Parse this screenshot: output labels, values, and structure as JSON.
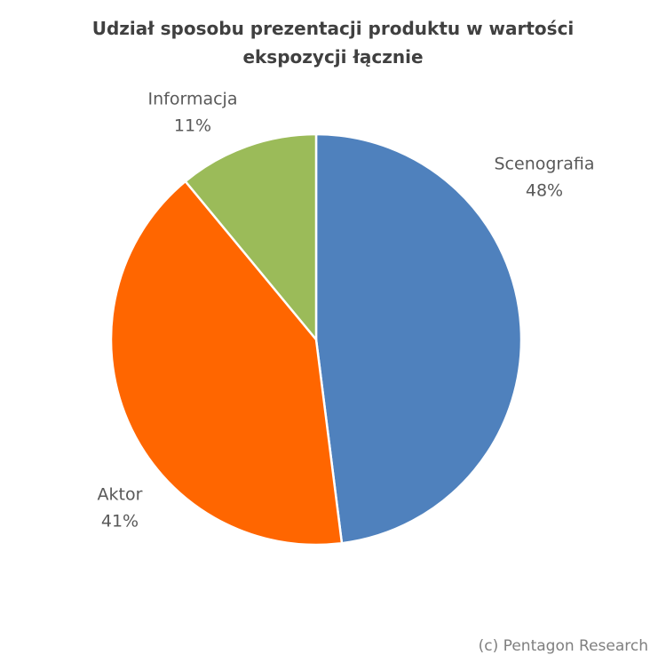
{
  "chart_data": {
    "type": "pie",
    "title": "Udział sposobu prezentacji produktu w wartości ekspozycji łącznie",
    "categories": [
      "Scenografia",
      "Aktor",
      "Informacja"
    ],
    "values": [
      48,
      41,
      11
    ],
    "value_labels": [
      "48%",
      "41%",
      "11%"
    ],
    "colors": [
      "#4f81bd",
      "#ff6600",
      "#9bbb59"
    ],
    "annotation": "(c) Pentagon Research"
  }
}
